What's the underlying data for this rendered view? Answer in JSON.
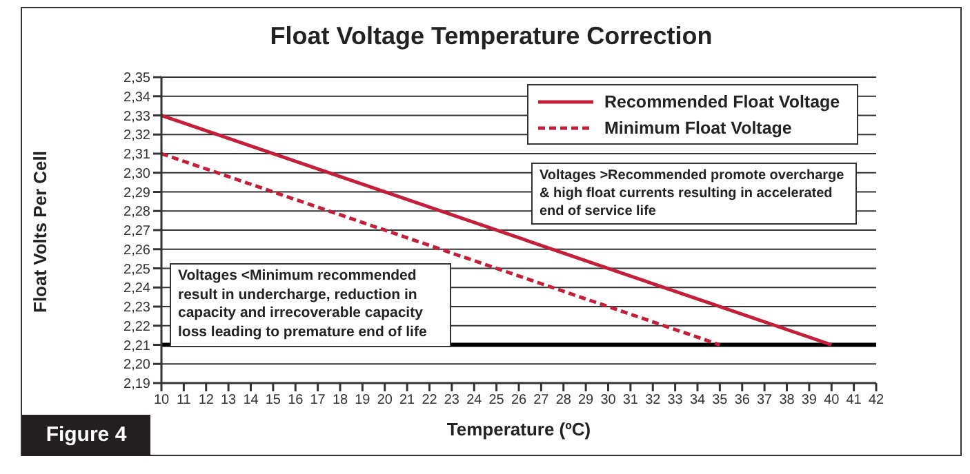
{
  "chart_data": {
    "type": "line",
    "title": "Float Voltage Temperature Correction",
    "xlabel": "Temperature (ºC)",
    "ylabel": "Float Volts Per Cell",
    "series": [
      {
        "name": "Recommended Float Voltage",
        "color": "#c41e3a",
        "line_style": "solid",
        "x": [
          10,
          40
        ],
        "values": [
          2.33,
          2.21
        ]
      },
      {
        "name": "Minimum Float Voltage",
        "color": "#c41e3a",
        "line_style": "dashed",
        "x": [
          10,
          35
        ],
        "values": [
          2.31,
          2.21
        ]
      }
    ],
    "xlim": [
      10,
      42
    ],
    "xticks": [
      10,
      11,
      12,
      13,
      14,
      15,
      16,
      17,
      18,
      19,
      20,
      21,
      22,
      23,
      24,
      25,
      26,
      27,
      28,
      29,
      30,
      31,
      32,
      33,
      34,
      35,
      36,
      37,
      38,
      39,
      40,
      41,
      42
    ],
    "ylim": [
      2.19,
      2.35
    ],
    "yticks": [
      {
        "value": 2.19,
        "label": "2,19"
      },
      {
        "value": 2.2,
        "label": "2,20"
      },
      {
        "value": 2.21,
        "label": "2,21"
      },
      {
        "value": 2.22,
        "label": "2,22"
      },
      {
        "value": 2.23,
        "label": "2,23"
      },
      {
        "value": 2.24,
        "label": "2,24"
      },
      {
        "value": 2.25,
        "label": "2,25"
      },
      {
        "value": 2.26,
        "label": "2,26"
      },
      {
        "value": 2.27,
        "label": "2,27"
      },
      {
        "value": 2.28,
        "label": "2,28"
      },
      {
        "value": 2.29,
        "label": "2,29"
      },
      {
        "value": 2.3,
        "label": "2,30"
      },
      {
        "value": 2.31,
        "label": "2,31"
      },
      {
        "value": 2.32,
        "label": "2,32"
      },
      {
        "value": 2.33,
        "label": "2,33"
      },
      {
        "value": 2.34,
        "label": "2,34"
      },
      {
        "value": 2.35,
        "label": "2,35"
      }
    ],
    "ref_lines": [
      {
        "axis": "y",
        "value": 2.21,
        "color": "#000000"
      }
    ],
    "grid": "y",
    "legend": "top right",
    "marker": "none",
    "annotations": [
      "Voltages >Recommended promote overcharge & high float currents resulting in accelerated end of service life",
      "Voltages <Minimum recommended result in undercharge, reduction in capacity and irrecoverable capacity loss leading to premature end of life",
      "Figure 4"
    ]
  }
}
